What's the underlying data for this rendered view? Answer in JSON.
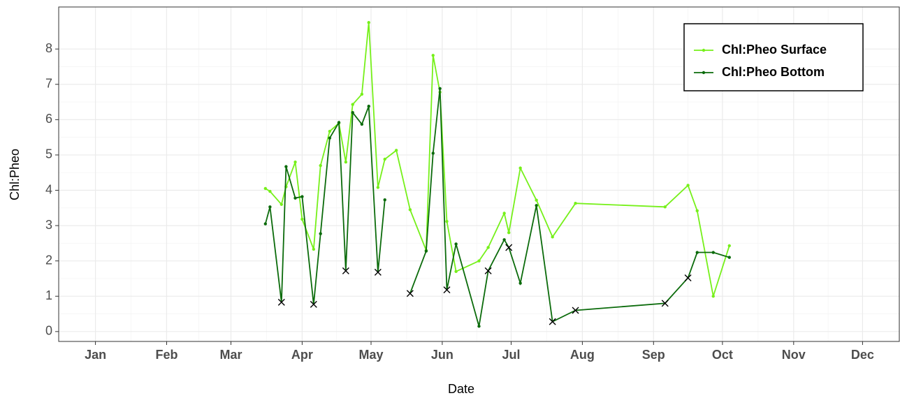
{
  "chart_data": {
    "type": "line",
    "x_label": "Date",
    "y_label": "Chl:Pheo",
    "x": [
      89,
      91,
      96,
      98,
      102,
      105,
      110,
      113,
      117,
      121,
      124,
      127,
      131,
      134,
      138,
      141,
      146,
      152,
      159,
      162,
      165,
      168,
      172,
      182,
      186,
      193,
      195,
      200,
      207,
      214,
      224,
      263,
      273,
      277,
      284,
      291
    ],
    "series": [
      {
        "name": "Chl:Pheo Surface",
        "color": "#76f01a",
        "values": [
          4.05,
          3.97,
          3.6,
          4.1,
          4.8,
          3.18,
          2.33,
          4.7,
          5.67,
          5.9,
          4.8,
          6.43,
          6.72,
          8.75,
          4.08,
          4.88,
          5.13,
          3.45,
          2.3,
          7.82,
          6.78,
          3.12,
          1.7,
          2.0,
          2.38,
          3.35,
          2.8,
          4.63,
          3.72,
          2.68,
          3.63,
          3.53,
          4.14,
          3.42,
          1.0,
          2.43
        ]
      },
      {
        "name": "Chl:Pheo Bottom",
        "color": "#0b6b0b",
        "values": [
          3.05,
          3.53,
          0.83,
          4.67,
          3.78,
          3.82,
          0.77,
          2.77,
          5.48,
          5.92,
          1.72,
          6.2,
          5.87,
          6.38,
          1.68,
          3.73,
          null,
          1.08,
          2.28,
          5.05,
          6.88,
          1.18,
          2.48,
          0.15,
          1.72,
          2.6,
          2.38,
          1.37,
          3.57,
          0.28,
          0.6,
          0.8,
          1.52,
          2.24,
          2.24,
          2.1
        ],
        "markers": [
          "dot",
          "dot",
          "cross",
          "dot",
          "dot",
          "dot",
          "cross",
          "dot",
          "dot",
          "dot",
          "cross",
          "dot",
          "dot",
          "dot",
          "cross",
          "dot",
          "dot",
          "cross",
          "dot",
          "dot",
          "dot",
          "cross",
          "dot",
          "dot",
          "cross",
          "dot",
          "cross",
          "dot",
          "dot",
          "cross",
          "cross",
          "cross",
          "cross",
          "dot",
          "dot",
          "dot"
        ]
      }
    ],
    "xlim": [
      -1,
      365
    ],
    "xticks": [
      {
        "value": 15,
        "label": "Jan"
      },
      {
        "value": 46,
        "label": "Feb"
      },
      {
        "value": 74,
        "label": "Mar"
      },
      {
        "value": 105,
        "label": "Apr"
      },
      {
        "value": 135,
        "label": "May"
      },
      {
        "value": 166,
        "label": "Jun"
      },
      {
        "value": 196,
        "label": "Jul"
      },
      {
        "value": 227,
        "label": "Aug"
      },
      {
        "value": 258,
        "label": "Sep"
      },
      {
        "value": 288,
        "label": "Oct"
      },
      {
        "value": 319,
        "label": "Nov"
      },
      {
        "value": 349,
        "label": "Dec"
      }
    ],
    "ylim": [
      -0.28,
      9.19
    ],
    "yticks": [
      0,
      1,
      2,
      3,
      4,
      5,
      6,
      7,
      8
    ],
    "grid": true,
    "legend": "top-right"
  }
}
